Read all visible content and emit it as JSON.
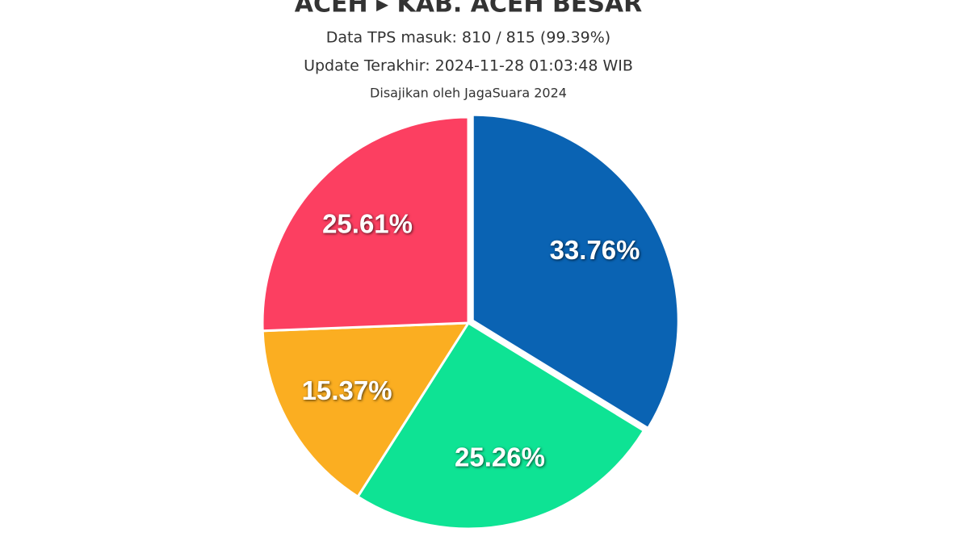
{
  "chart_data": {
    "type": "pie",
    "title": "ACEH ▸ KAB. ACEH BESAR",
    "subtitles": [
      "Data TPS masuk: 810 / 815 (99.39%)",
      "Update Terakhir: 2024-11-28 01:03:48 WIB",
      "Disajikan oleh JagaSuara 2024"
    ],
    "values": [
      33.76,
      25.26,
      15.37,
      25.61
    ],
    "value_labels": [
      "33.76%",
      "25.26%",
      "15.37%",
      "25.61%"
    ],
    "colors": [
      "#0a63b3",
      "#0ee394",
      "#fbae21",
      "#fc3f61"
    ]
  }
}
